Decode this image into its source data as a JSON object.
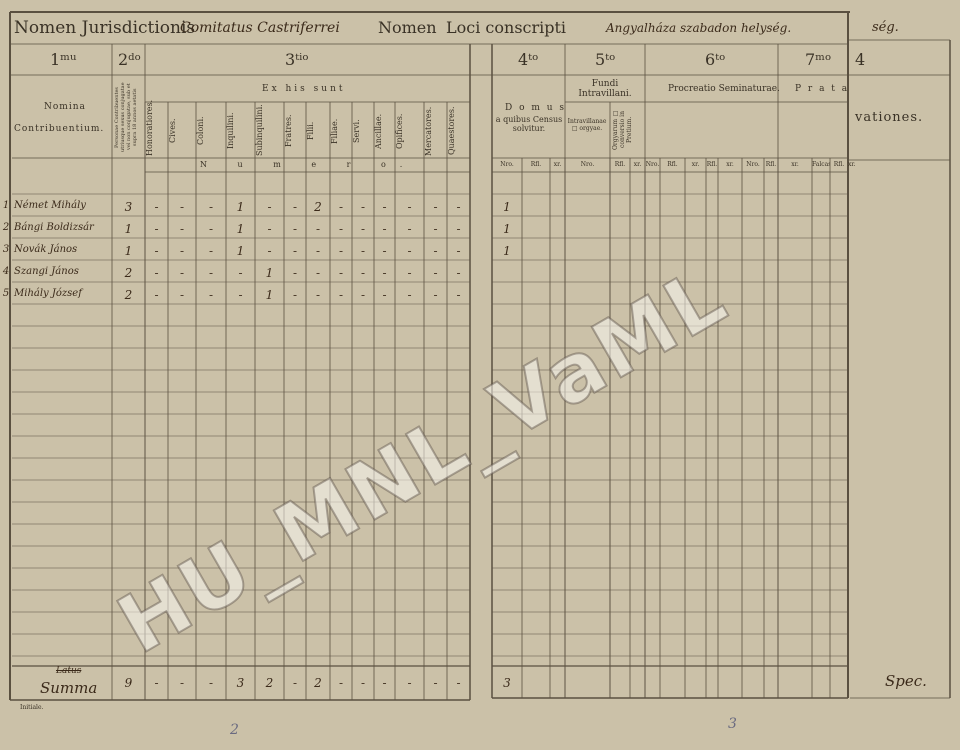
{
  "header": {
    "jurisdiction_label": "Nomen Jurisdictionis",
    "jurisdiction_value": "Comitatus Castriferrei",
    "locus_label": "Nomen",
    "locus_label2": "Loci conscripti",
    "locus_value": "Angyalháza szabadon helység.",
    "right_fragment": "ség."
  },
  "sections": {
    "s1": "1ᵐᵘ",
    "s2": "2ᵈᵒ",
    "s3": "3ᵗⁱᵒ",
    "s4": "4ᵗᵒ",
    "s5": "5ᵗᵒ",
    "s6": "6ᵗᵒ",
    "s7": "7ᵐᵒ",
    "s8": "4"
  },
  "left": {
    "nomina": "Nomina",
    "contribuentium": "Contribuentium.",
    "col2_head": "Personae Contribuentes utriusque sexus conjugatae vel non conjugatae, sub et supra 18 annos aetatis",
    "ex_his_sunt": "Ex his sunt",
    "numero": "N u m e r o.",
    "cols": [
      "Honoratiores.",
      "Cives.",
      "Coloni.",
      "Inquilini.",
      "Subinquilini.",
      "Fratres.",
      "Filii.",
      "Filiae.",
      "Servi.",
      "Ancillae.",
      "Opifices.",
      "Mercatores.",
      "Quaestores."
    ]
  },
  "right": {
    "domus": "D o m u s",
    "domus2": "a quibus Census solvitur.",
    "fundi": "Fundi Intravillani.",
    "intravillanae": "Intravillanae □ orgyae.",
    "orgyarum": "Orgyarum □ conversio in Pretium.",
    "procreatio": "Procreatio Seminaturae.",
    "prata": "P r a t a",
    "subheads": [
      "Nro.",
      "Rfl.",
      "xr.",
      "Nro.",
      "Rfl.",
      "xr.",
      "Nro.",
      "Rfl.",
      "xr.",
      "Rfl.",
      "xr.",
      "Nro.",
      "Rfl.",
      "xr.",
      "Falcastra.",
      "Rfl.",
      "xr."
    ],
    "observationes": "vationes."
  },
  "rows": [
    {
      "num": "1",
      "name": "Német Mihály",
      "total": "3",
      "vals": [
        "-",
        "-",
        "-",
        "1",
        "-",
        "-",
        "2",
        "-",
        "-",
        "-",
        "-",
        "-",
        "-"
      ],
      "domus": "1"
    },
    {
      "num": "2",
      "name": "Bángi Boldizsár",
      "total": "1",
      "vals": [
        "-",
        "-",
        "-",
        "1",
        "-",
        "-",
        "-",
        "-",
        "-",
        "-",
        "-",
        "-",
        "-"
      ],
      "domus": "1"
    },
    {
      "num": "3",
      "name": "Novák János",
      "total": "1",
      "vals": [
        "-",
        "-",
        "-",
        "1",
        "-",
        "-",
        "-",
        "-",
        "-",
        "-",
        "-",
        "-",
        "-"
      ],
      "domus": "1"
    },
    {
      "num": "4",
      "name": "Szangi János",
      "total": "2",
      "vals": [
        "-",
        "-",
        "-",
        "-",
        "1",
        "-",
        "-",
        "-",
        "-",
        "-",
        "-",
        "-",
        "-"
      ],
      "domus": ""
    },
    {
      "num": "5",
      "name": "Mihály József",
      "total": "2",
      "vals": [
        "-",
        "-",
        "-",
        "-",
        "1",
        "-",
        "-",
        "-",
        "-",
        "-",
        "-",
        "-",
        "-"
      ],
      "domus": ""
    }
  ],
  "summa": {
    "latus": "Latus",
    "label": "Summa",
    "total": "9",
    "vals": [
      "-",
      "-",
      "-",
      "3",
      "2",
      "-",
      "2",
      "-",
      "-",
      "-",
      "-",
      "-",
      "-"
    ],
    "domus": "3"
  },
  "footer": {
    "initials": "Initiale.",
    "page_left": "2",
    "page_right": "3",
    "signature": "Spec."
  },
  "watermark": "HU_MNL_VaML",
  "colors": {
    "paper": "#cbc1a8",
    "ink": "#3a3226"
  }
}
